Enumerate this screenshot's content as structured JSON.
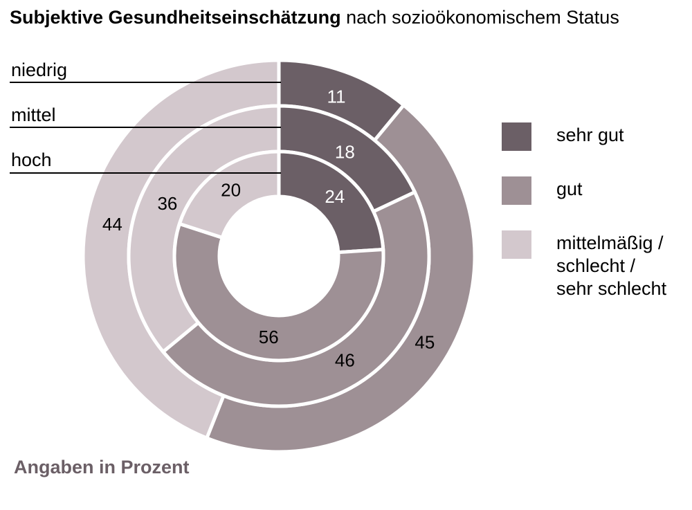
{
  "title": {
    "bold": "Subjektive Gesundheitseinschätzung",
    "rest": " nach sozioökonomischem Status"
  },
  "note": "Angaben in Prozent",
  "colors": {
    "sehr_gut": "#6b5f66",
    "gut": "#9e9095",
    "mittel_schlecht": "#d3c8cd",
    "note_text": "#6b5f66"
  },
  "ring_labels": [
    "niedrig",
    "mittel",
    "hoch"
  ],
  "legend": [
    {
      "label_lines": [
        "sehr gut"
      ],
      "color_key": "sehr_gut"
    },
    {
      "label_lines": [
        "gut"
      ],
      "color_key": "gut"
    },
    {
      "label_lines": [
        "mittelmäßig /",
        "schlecht /",
        "sehr schlecht"
      ],
      "color_key": "mittel_schlecht"
    }
  ],
  "chart_data": {
    "type": "pie",
    "variant": "multi-ring donut",
    "categories": [
      "sehr gut",
      "gut",
      "mittelmäßig / schlecht / sehr schlecht"
    ],
    "series": [
      {
        "name": "niedrig",
        "values": [
          11,
          45,
          44
        ]
      },
      {
        "name": "mittel",
        "values": [
          18,
          46,
          36
        ]
      },
      {
        "name": "hoch",
        "values": [
          24,
          56,
          20
        ]
      }
    ],
    "unit": "Prozent",
    "legend_position": "right"
  }
}
